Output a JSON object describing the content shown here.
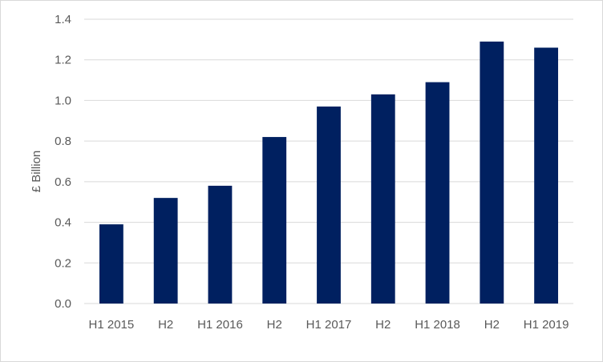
{
  "chart_data": {
    "type": "bar",
    "title": "",
    "xlabel": "",
    "ylabel": "£ Billion",
    "categories": [
      "H1 2015",
      "H2",
      "H1 2016",
      "H2",
      "H1 2017",
      "H2",
      "H1 2018",
      "H2",
      "H1 2019"
    ],
    "values": [
      0.39,
      0.52,
      0.58,
      0.82,
      0.97,
      1.03,
      1.09,
      1.29,
      1.26
    ],
    "ylim": [
      0,
      1.4
    ],
    "yticks": [
      "0.0",
      "0.2",
      "0.4",
      "0.6",
      "0.8",
      "1.0",
      "1.2",
      "1.4"
    ],
    "grid": true,
    "legend": "none",
    "colors": {
      "bar": "#002060",
      "grid": "#d9d9d9",
      "text": "#595959"
    }
  }
}
